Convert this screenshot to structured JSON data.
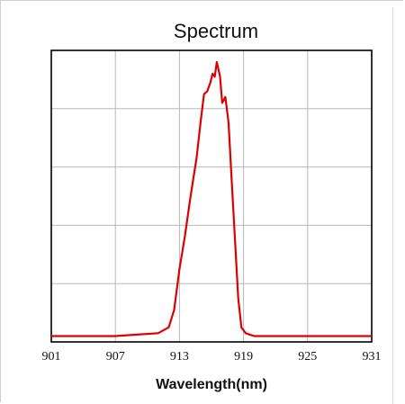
{
  "chart_data": {
    "type": "line",
    "title": "Spectrum",
    "xlabel": "Wavelength(nm)",
    "ylabel": "",
    "xlim": [
      901,
      931
    ],
    "ylim": [
      0,
      1
    ],
    "x_ticks": [
      "901",
      "907",
      "913",
      "919",
      "925",
      "931"
    ],
    "grid": true,
    "line_color": "#dd0000",
    "series": [
      {
        "x": [
          901,
          903,
          905,
          907,
          909,
          911,
          912,
          912.5,
          913,
          913.5,
          914,
          914.3,
          914.6,
          915,
          915.3,
          915.6,
          915.9,
          916.1,
          916.3,
          916.5,
          916.8,
          917,
          917.3,
          917.6,
          917.9,
          918.2,
          918.5,
          918.8,
          919.2,
          919.6,
          920,
          921,
          923,
          925,
          927,
          929,
          931
        ],
        "y": [
          0.02,
          0.02,
          0.02,
          0.02,
          0.025,
          0.03,
          0.05,
          0.11,
          0.25,
          0.36,
          0.49,
          0.56,
          0.63,
          0.76,
          0.85,
          0.86,
          0.89,
          0.92,
          0.91,
          0.96,
          0.91,
          0.82,
          0.84,
          0.75,
          0.55,
          0.35,
          0.15,
          0.05,
          0.03,
          0.025,
          0.02,
          0.02,
          0.02,
          0.02,
          0.02,
          0.02,
          0.02
        ]
      }
    ]
  }
}
